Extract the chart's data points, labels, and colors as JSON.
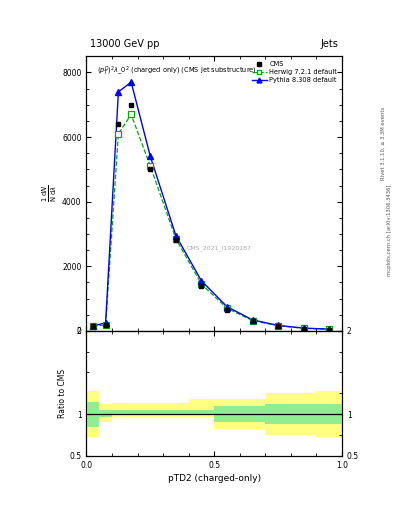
{
  "title_top": "13000 GeV pp",
  "title_right": "Jets",
  "subtitle": "$(p_T^D)^2\\lambda\\_0^2$ (charged only) (CMS jet substructure)",
  "xlabel": "pTD2 (charged-only)",
  "ylabel_ratio": "Ratio to CMS",
  "watermark": "CMS_2021_I1920187",
  "right_label": "mcplots.cern.ch [arXiv:1306.3436]",
  "right_label2": "Rivet 3.1.10, ≥ 3.3M events",
  "x_bins": [
    0.0,
    0.05,
    0.1,
    0.15,
    0.2,
    0.3,
    0.4,
    0.5,
    0.6,
    0.7,
    0.8,
    0.9,
    1.0
  ],
  "cms_y": [
    150,
    180,
    6400,
    7000,
    5000,
    2800,
    1400,
    650,
    300,
    150,
    70,
    40
  ],
  "herwig_y": [
    150,
    180,
    6100,
    6700,
    5100,
    2850,
    1450,
    700,
    320,
    160,
    80,
    50
  ],
  "pythia_y": [
    150,
    250,
    7400,
    7700,
    5400,
    2950,
    1550,
    750,
    340,
    170,
    85,
    55
  ],
  "ratio_yellow_lo": [
    0.72,
    0.9,
    0.97,
    0.97,
    0.97,
    0.97,
    0.97,
    0.82,
    0.82,
    0.75,
    0.75,
    0.72
  ],
  "ratio_yellow_hi": [
    1.28,
    1.12,
    1.13,
    1.13,
    1.13,
    1.13,
    1.18,
    1.18,
    1.18,
    1.25,
    1.25,
    1.28
  ],
  "ratio_green_lo": [
    0.85,
    0.97,
    1.0,
    1.0,
    1.0,
    1.0,
    1.0,
    0.9,
    0.9,
    0.88,
    0.88,
    0.88
  ],
  "ratio_green_hi": [
    1.15,
    1.05,
    1.05,
    1.05,
    1.05,
    1.05,
    1.05,
    1.1,
    1.1,
    1.12,
    1.12,
    1.12
  ],
  "ylim_main": [
    0,
    8500
  ],
  "ylim_ratio": [
    0.5,
    2.0
  ],
  "cms_color": "#000000",
  "herwig_color": "#00aa00",
  "pythia_color": "#0000ff",
  "herwig_band_color": "#90ee90",
  "pythia_band_color": "#ffff80",
  "bg_color": "#ffffff"
}
